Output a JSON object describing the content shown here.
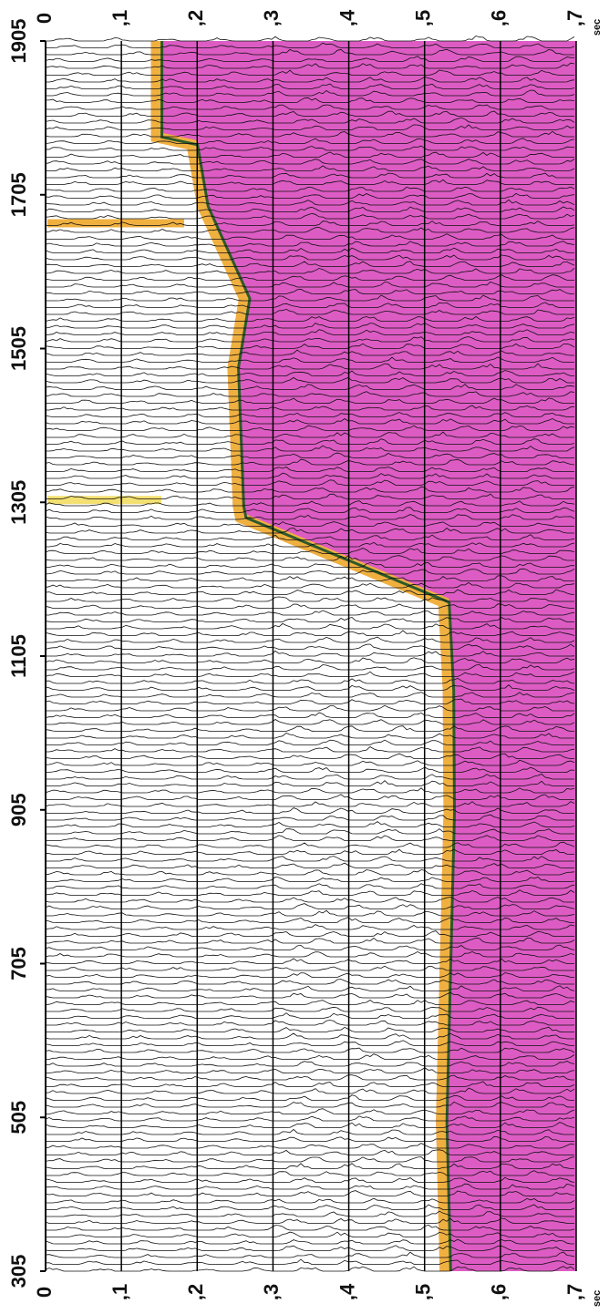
{
  "chart_data": {
    "type": "seismic",
    "x_label": "sec",
    "xlim": [
      0,
      0.7
    ],
    "xticks": [
      0,
      {
        "value": 0.1,
        "label": ",1"
      },
      {
        "value": 0.2,
        "label": ",2"
      },
      {
        "value": 0.3,
        "label": ",3"
      },
      {
        "value": 0.4,
        "label": ",4"
      },
      {
        "value": 0.5,
        "label": ",5"
      },
      {
        "value": 0.6,
        "label": ",6"
      },
      {
        "value": 0.7,
        "label": ",7"
      }
    ],
    "ylim": [
      305,
      1905
    ],
    "yticks": [
      305,
      505,
      705,
      905,
      1105,
      1305,
      1505,
      1705,
      1905
    ],
    "grid": true,
    "x": [
      1905,
      1780,
      1770,
      1690,
      1570,
      1480,
      1300,
      1285,
      1175,
      1060,
      900,
      700,
      500,
      305
    ],
    "series": [
      {
        "color": "#dc5cc4",
        "values": [
          0.139,
          0.139,
          0.186,
          0.2,
          0.255,
          0.24,
          0.247,
          0.25,
          0.518,
          0.524,
          0.525,
          0.52,
          0.515,
          0.52
        ]
      }
    ]
  }
}
